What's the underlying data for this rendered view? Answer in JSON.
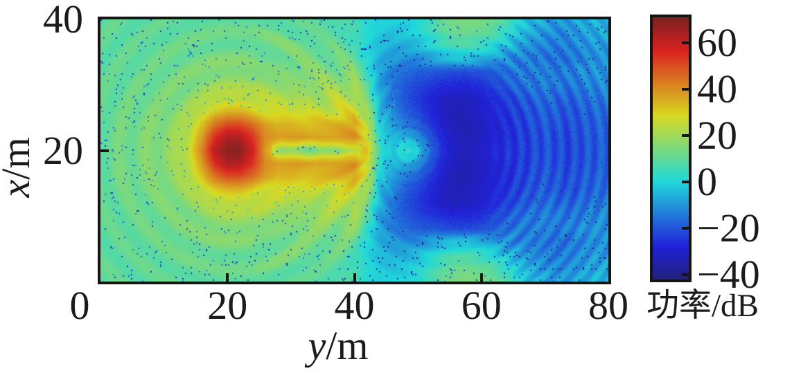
{
  "chart_data": {
    "type": "heatmap",
    "description": "Acoustic power field (dB): strong source spot near y=21 m, x=20 m; orange ducted beams out to y≈42 m; deep-blue shadow lobe centered near y≈57 m; rippled blue far field beyond",
    "xlabel_var": "y",
    "xlabel_unit": "/m",
    "ylabel_var": "x",
    "ylabel_unit": "/m",
    "x_range": [
      0,
      80
    ],
    "y_range": [
      0,
      40
    ],
    "x_ticks": [
      0,
      20,
      40,
      60,
      80
    ],
    "x_tick_marks": [
      20,
      40,
      60
    ],
    "y_ticks": [
      40,
      20
    ],
    "y_tick_marks": [
      20
    ],
    "colorbar": {
      "label": "功率/dB",
      "ticks": [
        60,
        40,
        20,
        0,
        -20,
        -40
      ],
      "cmin": -42,
      "cmax": 71,
      "colormap": "jet"
    },
    "field": {
      "grid_step_m": 2,
      "y_values_m": "0 to 80 step 2 (41 columns)",
      "symmetric_about_x_m": 20,
      "rows_x40_to_x20": [
        [
          10,
          10,
          10,
          10,
          10,
          10,
          10,
          10,
          11,
          11,
          11,
          11,
          11,
          11,
          10,
          10,
          10,
          9,
          9,
          8,
          6,
          2,
          0,
          -1,
          0,
          2,
          7,
          12,
          14,
          15,
          14,
          12,
          7,
          0,
          -4,
          -7,
          -9,
          -8,
          -6,
          -5,
          -5
        ],
        [
          10,
          10,
          10,
          10,
          10,
          10,
          11,
          11,
          11,
          11,
          11,
          11,
          11,
          11,
          11,
          10,
          10,
          10,
          9,
          8,
          5,
          1,
          -2,
          -3,
          -2,
          0,
          4,
          9,
          12,
          12,
          11,
          8,
          3,
          -3,
          -7,
          -10,
          -12,
          -11,
          -9,
          -7,
          -7
        ],
        [
          10,
          10,
          10,
          10,
          11,
          11,
          11,
          12,
          12,
          12,
          12,
          12,
          12,
          12,
          12,
          12,
          12,
          11,
          11,
          10,
          7,
          0,
          -4,
          -6,
          -6,
          -4,
          0,
          4,
          6,
          6,
          4,
          1,
          -4,
          -8,
          -11,
          -13,
          -14,
          -13,
          -11,
          -9,
          -9
        ],
        [
          10,
          10,
          10,
          11,
          11,
          12,
          12,
          13,
          13,
          14,
          14,
          14,
          14,
          13,
          13,
          13,
          13,
          13,
          13,
          12,
          10,
          1,
          -6,
          -9,
          -11,
          -11,
          -8,
          -5,
          -3,
          -3,
          -5,
          -8,
          -11,
          -13,
          -14,
          -15,
          -16,
          -15,
          -13,
          -11,
          -11
        ],
        [
          10,
          10,
          11,
          11,
          12,
          12,
          13,
          14,
          15,
          16,
          17,
          17,
          16,
          16,
          16,
          15,
          15,
          15,
          16,
          16,
          15,
          4,
          -8,
          -13,
          -16,
          -18,
          -19,
          -20,
          -21,
          -21,
          -20,
          -18,
          -16,
          -14,
          -13,
          -13,
          -14,
          -13,
          -11,
          -10,
          -10
        ],
        [
          10,
          11,
          11,
          12,
          12,
          13,
          14,
          15,
          17,
          19,
          20,
          20,
          19,
          19,
          18,
          18,
          18,
          18,
          19,
          20,
          20,
          8,
          -8,
          -15,
          -19,
          -22,
          -24,
          -26,
          -27,
          -27,
          -25,
          -22,
          -19,
          -16,
          -14,
          -13,
          -14,
          -15,
          -13,
          -12,
          -11
        ],
        [
          10,
          11,
          12,
          12,
          13,
          14,
          15,
          17,
          20,
          23,
          25,
          25,
          23,
          22,
          22,
          21,
          21,
          21,
          22,
          23,
          24,
          12,
          -6,
          -14,
          -20,
          -24,
          -28,
          -31,
          -32,
          -31,
          -29,
          -26,
          -23,
          -20,
          -18,
          -16,
          -17,
          -18,
          -16,
          -15,
          -14
        ],
        [
          11,
          12,
          12,
          13,
          14,
          15,
          17,
          20,
          25,
          31,
          34,
          34,
          31,
          28,
          27,
          26,
          25,
          25,
          26,
          27,
          29,
          18,
          -4,
          -12,
          -18,
          -22,
          -27,
          -31,
          -33,
          -32,
          -30,
          -27,
          -25,
          -22,
          -20,
          -18,
          -19,
          -20,
          -18,
          -17,
          -16
        ],
        [
          11,
          12,
          13,
          14,
          15,
          16,
          18,
          23,
          32,
          44,
          50,
          50,
          45,
          38,
          35,
          35,
          34,
          33,
          34,
          35,
          37,
          25,
          -2,
          -8,
          -14,
          -18,
          -24,
          -30,
          -33,
          -33,
          -31,
          -28,
          -26,
          -23,
          -21,
          -19,
          -20,
          -21,
          -19,
          -18,
          -17
        ],
        [
          11,
          12,
          13,
          14,
          15,
          17,
          19,
          25,
          38,
          55,
          64,
          63,
          54,
          40,
          37,
          38,
          38,
          37,
          38,
          39,
          40,
          28,
          0,
          -5,
          -8,
          -12,
          -20,
          -28,
          -32,
          -33,
          -31,
          -28,
          -26,
          -24,
          -22,
          -20,
          -21,
          -22,
          -20,
          -19,
          -18
        ],
        [
          11,
          12,
          13,
          14,
          15,
          17,
          20,
          27,
          42,
          62,
          69,
          69,
          58,
          38,
          26,
          23,
          20,
          20,
          22,
          25,
          30,
          34,
          3,
          -4,
          -4,
          -6,
          -16,
          -26,
          -31,
          -32,
          -30,
          -27,
          -25,
          -24,
          -22,
          -20,
          -21,
          -22,
          -20,
          -19,
          -18
        ]
      ]
    },
    "texture": {
      "source_center": {
        "y_m": 21,
        "x_m": 20
      },
      "interference_rings": {
        "wavelength_m": 4.3,
        "amp_db": 2.5
      },
      "caustic_ray_fan": {
        "origin_y_m": 45,
        "angular_count": 18,
        "amp_db": 2.6
      },
      "shadow_halo_rings": {
        "center_y_m": 55,
        "wavelength_m": 2.6,
        "amp_db": 2.6
      },
      "eye_feature": {
        "y_m": 48.5,
        "x_m": 20,
        "wavelength_m": 1.5
      },
      "far_field_arcs": {
        "center_y_m": 49,
        "wavelength_m": 2.1,
        "amp_db": 3.5
      },
      "axial_null_depth_db": 7,
      "speckle_density": 0.022,
      "speckle_depth_db": 24
    }
  }
}
